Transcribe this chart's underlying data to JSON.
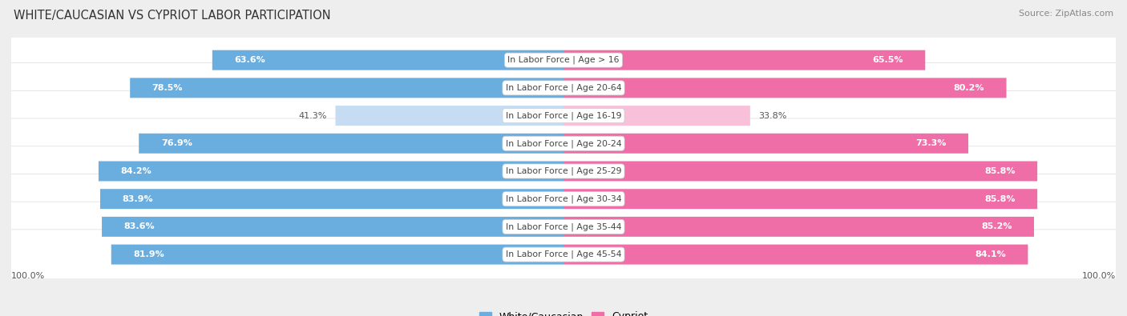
{
  "title": "WHITE/CAUCASIAN VS CYPRIOT LABOR PARTICIPATION",
  "source": "Source: ZipAtlas.com",
  "categories": [
    "In Labor Force | Age > 16",
    "In Labor Force | Age 20-64",
    "In Labor Force | Age 16-19",
    "In Labor Force | Age 20-24",
    "In Labor Force | Age 25-29",
    "In Labor Force | Age 30-34",
    "In Labor Force | Age 35-44",
    "In Labor Force | Age 45-54"
  ],
  "white_values": [
    63.6,
    78.5,
    41.3,
    76.9,
    84.2,
    83.9,
    83.6,
    81.9
  ],
  "cypriot_values": [
    65.5,
    80.2,
    33.8,
    73.3,
    85.8,
    85.8,
    85.2,
    84.1
  ],
  "white_color": "#6AAEE0",
  "white_color_light": "#C5DCF2",
  "cypriot_color": "#F06EA8",
  "cypriot_color_light": "#F9C0D9",
  "label_color_dark": "#555555",
  "label_color_white": "#ffffff",
  "background_color": "#eeeeee",
  "row_bg_color": "#ffffff",
  "row_sep_color": "#dddddd",
  "max_value": 100.0,
  "bar_height": 0.72,
  "title_fontsize": 10.5,
  "source_fontsize": 8,
  "value_fontsize": 8,
  "cat_fontsize": 7.8,
  "legend_fontsize": 9,
  "axis_label_fontsize": 8
}
